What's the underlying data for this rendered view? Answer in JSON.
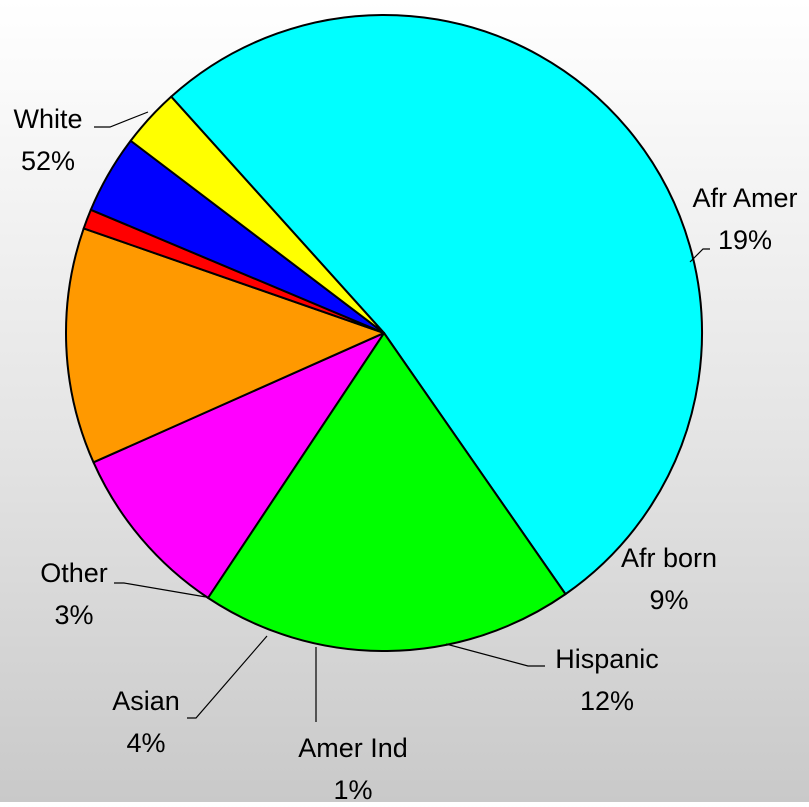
{
  "chart_data": {
    "type": "pie",
    "title": "",
    "start_angle_deg": 132,
    "direction": "clockwise",
    "slices": [
      {
        "label": "White",
        "value": 52,
        "pct_text": "52%",
        "color": "#00FFFF"
      },
      {
        "label": "Afr Amer",
        "value": 19,
        "pct_text": "19%",
        "color": "#00FF00"
      },
      {
        "label": "Afr born",
        "value": 9,
        "pct_text": "9%",
        "color": "#FF00FF"
      },
      {
        "label": "Hispanic",
        "value": 12,
        "pct_text": "12%",
        "color": "#FF9900"
      },
      {
        "label": "Amer Ind",
        "value": 1,
        "pct_text": "1%",
        "color": "#FF0000"
      },
      {
        "label": "Asian",
        "value": 4,
        "pct_text": "4%",
        "color": "#0000FF"
      },
      {
        "label": "Other",
        "value": 3,
        "pct_text": "3%",
        "color": "#FFFF00"
      }
    ],
    "legend": "none",
    "labels_outside_with_leader_lines": true
  }
}
